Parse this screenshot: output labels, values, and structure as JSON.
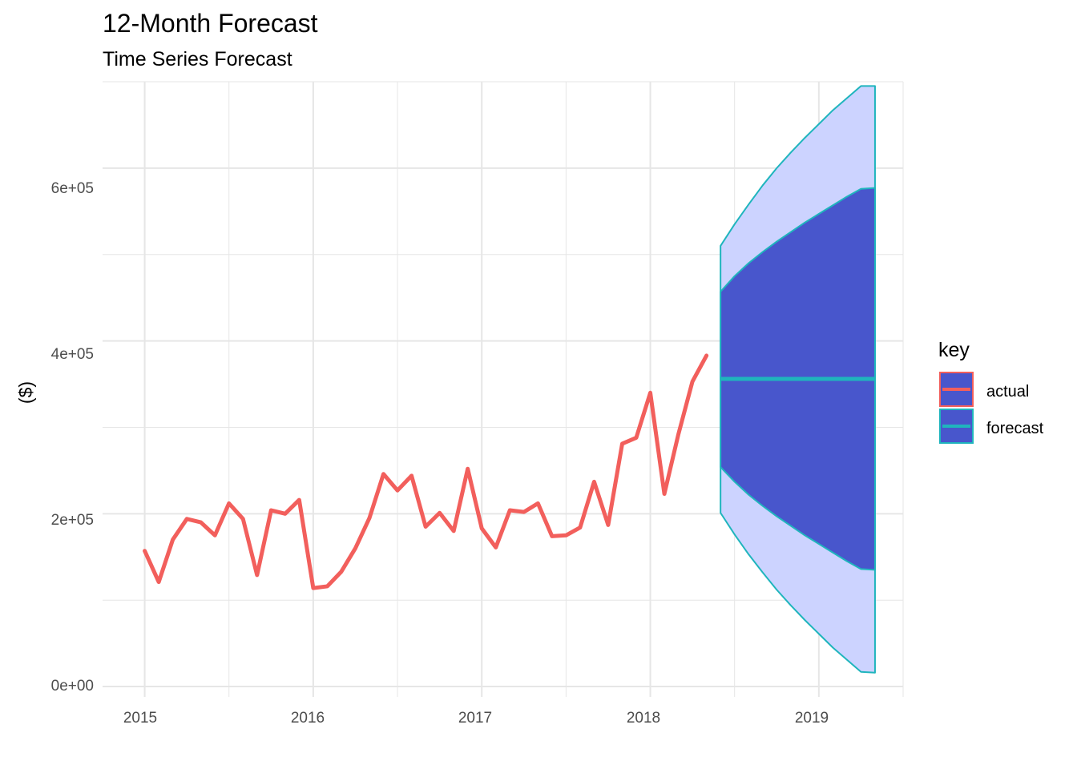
{
  "chart_data": {
    "type": "line",
    "title": "12-Month Forecast",
    "subtitle": "Time Series Forecast",
    "xlabel": "",
    "ylabel": "($)",
    "x_ticks": [
      "2015",
      "2016",
      "2017",
      "2018",
      "2019"
    ],
    "y_ticks": [
      "0e+00",
      "2e+05",
      "4e+05",
      "6e+05"
    ],
    "xlim": [
      "2014-10",
      "2019-07"
    ],
    "ylim": [
      -12000,
      700000
    ],
    "grid": true,
    "legend": {
      "title": "key",
      "position": "right",
      "entries": [
        "actual",
        "forecast"
      ]
    },
    "colors": {
      "actual": "#f25f5c",
      "forecast": "#1fb5bd",
      "band80": "#4856cc",
      "band95": "#ccd3ff",
      "grid": "#e6e6e6"
    },
    "series": [
      {
        "name": "actual",
        "x": [
          "2015-01",
          "2015-02",
          "2015-03",
          "2015-04",
          "2015-05",
          "2015-06",
          "2015-07",
          "2015-08",
          "2015-09",
          "2015-10",
          "2015-11",
          "2015-12",
          "2016-01",
          "2016-02",
          "2016-03",
          "2016-04",
          "2016-05",
          "2016-06",
          "2016-07",
          "2016-08",
          "2016-09",
          "2016-10",
          "2016-11",
          "2016-12",
          "2017-01",
          "2017-02",
          "2017-03",
          "2017-04",
          "2017-05",
          "2017-06",
          "2017-07",
          "2017-08",
          "2017-09",
          "2017-10",
          "2017-11",
          "2017-12",
          "2018-01",
          "2018-02",
          "2018-03",
          "2018-04",
          "2018-05"
        ],
        "values": [
          157000,
          121000,
          170000,
          194000,
          190000,
          175000,
          212000,
          194000,
          129000,
          204000,
          200000,
          216000,
          114000,
          116000,
          133000,
          160000,
          195000,
          246000,
          227000,
          244000,
          185000,
          201000,
          180000,
          252000,
          183000,
          161000,
          204000,
          202000,
          212000,
          174000,
          175000,
          184000,
          237000,
          187000,
          281000,
          288000,
          340000,
          223000,
          292000,
          353000,
          383000
        ]
      },
      {
        "name": "forecast",
        "x": [
          "2018-06",
          "2018-07",
          "2018-08",
          "2018-09",
          "2018-10",
          "2018-11",
          "2018-12",
          "2019-01",
          "2019-02",
          "2019-03",
          "2019-04",
          "2019-05"
        ],
        "values": [
          356000,
          356000,
          356000,
          356000,
          356000,
          356000,
          356000,
          356000,
          356000,
          356000,
          356000,
          356000
        ],
        "lo80": [
          254000,
          237000,
          222000,
          209000,
          197000,
          186000,
          175000,
          165000,
          155000,
          145000,
          136000,
          135000
        ],
        "hi80": [
          457000,
          475000,
          490000,
          503000,
          515000,
          526000,
          537000,
          547000,
          557000,
          567000,
          576000,
          577000
        ],
        "lo95": [
          201000,
          176000,
          153000,
          132000,
          112000,
          94000,
          77000,
          61000,
          45000,
          31000,
          17000,
          16000
        ],
        "hi95": [
          510000,
          535000,
          558000,
          580000,
          600000,
          618000,
          635000,
          651000,
          667000,
          681000,
          695000,
          695000
        ]
      }
    ]
  }
}
